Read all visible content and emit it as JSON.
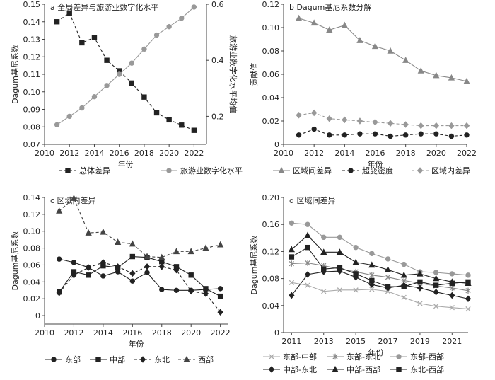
{
  "chart_data": [
    {
      "type": "line",
      "title": "a 全局差异与旅游业数字化水平",
      "xlabel": "年份",
      "ylabel": "Dagum基尼系数",
      "ylabel_right": "旅游业数字化水平均值",
      "xlim": [
        2010,
        2023
      ],
      "ylim": [
        0.07,
        0.15
      ],
      "ylim_right": [
        0.1,
        0.6
      ],
      "xticks": [
        "2010",
        "2012",
        "2014",
        "2016",
        "2018",
        "2020",
        "2022"
      ],
      "yticks": [
        "0.07",
        "0.08",
        "0.09",
        "0.10",
        "0.11",
        "0.12",
        "0.13",
        "0.14",
        "0.15"
      ],
      "yticks_right": [
        "0.2",
        "0.4",
        "0.6"
      ],
      "x": [
        2011,
        2012,
        2013,
        2014,
        2015,
        2016,
        2017,
        2018,
        2019,
        2020,
        2021,
        2022
      ],
      "series": [
        {
          "name": "总体差异",
          "axis": "left",
          "style": "dashed",
          "marker": "square",
          "color": "#222222",
          "values": [
            0.14,
            0.145,
            0.128,
            0.131,
            0.118,
            0.112,
            0.105,
            0.097,
            0.088,
            0.084,
            0.081,
            0.078
          ]
        },
        {
          "name": "旅游业数字化水平",
          "axis": "right",
          "style": "solid",
          "marker": "circle",
          "color": "#999999",
          "values": [
            0.17,
            0.2,
            0.23,
            0.27,
            0.31,
            0.35,
            0.39,
            0.44,
            0.49,
            0.52,
            0.55,
            0.59
          ]
        }
      ]
    },
    {
      "type": "line",
      "title": "b Dagum基尼系数分解",
      "xlabel": "年份",
      "ylabel": "贡献值",
      "xlim": [
        2010,
        2022
      ],
      "ylim": [
        0,
        0.12
      ],
      "xticks": [
        "2010",
        "2012",
        "2014",
        "2016",
        "2018",
        "2020",
        "2022"
      ],
      "yticks": [
        "0",
        "0.02",
        "0.04",
        "0.06",
        "0.08",
        "0.10",
        "0.12"
      ],
      "x": [
        2011,
        2012,
        2013,
        2014,
        2015,
        2016,
        2017,
        2018,
        2019,
        2020,
        2021,
        2022
      ],
      "series": [
        {
          "name": "区域间差异",
          "style": "solid",
          "marker": "triangle",
          "color": "#888888",
          "values": [
            0.108,
            0.104,
            0.098,
            0.102,
            0.089,
            0.084,
            0.08,
            0.072,
            0.063,
            0.059,
            0.057,
            0.054
          ]
        },
        {
          "name": "超变密度",
          "style": "dashed",
          "marker": "circle",
          "color": "#222222",
          "values": [
            0.008,
            0.013,
            0.008,
            0.008,
            0.009,
            0.009,
            0.007,
            0.008,
            0.009,
            0.009,
            0.007,
            0.008
          ]
        },
        {
          "name": "区域内差异",
          "style": "dashed",
          "marker": "diamond",
          "color": "#999999",
          "values": [
            0.025,
            0.027,
            0.022,
            0.021,
            0.02,
            0.019,
            0.018,
            0.017,
            0.016,
            0.016,
            0.016,
            0.016
          ]
        }
      ]
    },
    {
      "type": "line",
      "title": "c 区域内差异",
      "xlabel": "年份",
      "ylabel": "Dagum基尼系数",
      "xlim": [
        2010,
        2022.5
      ],
      "ylim": [
        -0.01,
        0.14
      ],
      "xticks": [
        "2010",
        "2012",
        "2014",
        "2016",
        "2018",
        "2020",
        "2022"
      ],
      "yticks": [
        "0",
        "0.02",
        "0.04",
        "0.06",
        "0.08",
        "0.10",
        "0.12",
        "0.14"
      ],
      "x": [
        2011,
        2012,
        2013,
        2014,
        2015,
        2016,
        2017,
        2018,
        2019,
        2020,
        2021,
        2022
      ],
      "series": [
        {
          "name": "东部",
          "style": "solid",
          "marker": "circle",
          "color": "#222222",
          "values": [
            0.067,
            0.063,
            0.057,
            0.047,
            0.052,
            0.041,
            0.051,
            0.031,
            0.03,
            0.03,
            0.031,
            0.032
          ]
        },
        {
          "name": "中部",
          "style": "solid",
          "marker": "square",
          "color": "#222222",
          "values": [
            0.028,
            0.052,
            0.048,
            0.059,
            0.057,
            0.07,
            0.069,
            0.064,
            0.058,
            0.048,
            0.032,
            0.023
          ]
        },
        {
          "name": "东北",
          "style": "dashed",
          "marker": "diamond",
          "color": "#222222",
          "values": [
            0.027,
            0.048,
            0.057,
            0.063,
            0.058,
            0.05,
            0.058,
            0.058,
            0.054,
            0.029,
            0.026,
            0.004
          ]
        },
        {
          "name": "西部",
          "style": "dashed",
          "marker": "triangle",
          "color": "#444444",
          "values": [
            0.124,
            0.139,
            0.098,
            0.099,
            0.087,
            0.085,
            0.07,
            0.069,
            0.076,
            0.076,
            0.08,
            0.084
          ]
        }
      ]
    },
    {
      "type": "line",
      "title": "d 区域间差异",
      "xlabel": "年份",
      "ylabel": "Dagum基尼系数",
      "xlim": [
        2010.5,
        2022
      ],
      "ylim": [
        0,
        0.2
      ],
      "xticks": [
        "2011",
        "2013",
        "2015",
        "2017",
        "2019",
        "2021"
      ],
      "yticks": [
        "0",
        "0.04",
        "0.08",
        "0.12",
        "0.16",
        "0.20"
      ],
      "x": [
        2011,
        2012,
        2013,
        2014,
        2015,
        2016,
        2017,
        2018,
        2019,
        2020,
        2021,
        2022
      ],
      "series": [
        {
          "name": "东部-中部",
          "style": "solid",
          "marker": "x",
          "color": "#aaaaaa",
          "values": [
            0.074,
            0.07,
            0.061,
            0.063,
            0.063,
            0.064,
            0.061,
            0.052,
            0.043,
            0.039,
            0.037,
            0.035
          ]
        },
        {
          "name": "东部-东北",
          "style": "solid",
          "marker": "star",
          "color": "#888888",
          "values": [
            0.102,
            0.103,
            0.099,
            0.094,
            0.09,
            0.085,
            0.082,
            0.077,
            0.073,
            0.069,
            0.066,
            0.062
          ]
        },
        {
          "name": "东部-西部",
          "style": "solid",
          "marker": "circle",
          "color": "#999999",
          "values": [
            0.162,
            0.16,
            0.141,
            0.141,
            0.126,
            0.117,
            0.109,
            0.101,
            0.09,
            0.089,
            0.087,
            0.085
          ]
        },
        {
          "name": "中部-东北",
          "style": "solid",
          "marker": "diamond",
          "color": "#222222",
          "values": [
            0.055,
            0.086,
            0.09,
            0.091,
            0.082,
            0.071,
            0.066,
            0.07,
            0.066,
            0.06,
            0.055,
            0.05
          ]
        },
        {
          "name": "中部-西部",
          "style": "solid",
          "marker": "triangle",
          "color": "#222222",
          "values": [
            0.123,
            0.144,
            0.119,
            0.119,
            0.104,
            0.1,
            0.093,
            0.085,
            0.087,
            0.08,
            0.075,
            0.073
          ]
        },
        {
          "name": "东北-西部",
          "style": "solid",
          "marker": "square",
          "color": "#222222",
          "values": [
            0.112,
            0.126,
            0.094,
            0.096,
            0.087,
            0.077,
            0.068,
            0.068,
            0.075,
            0.07,
            0.073,
            0.075
          ]
        }
      ]
    }
  ]
}
